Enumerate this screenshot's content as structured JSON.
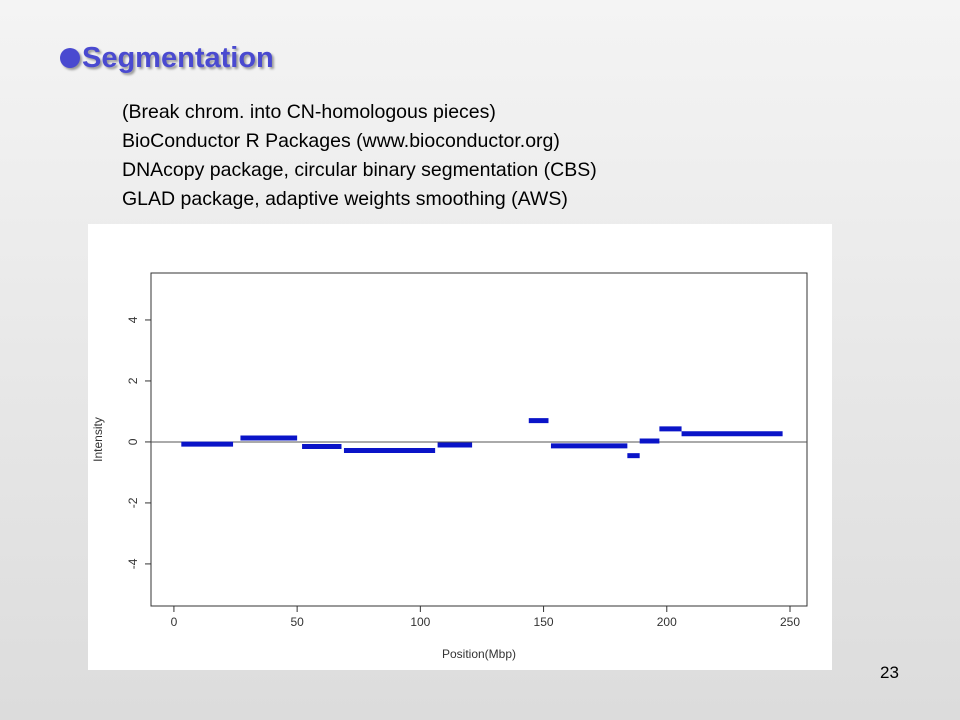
{
  "slide": {
    "title": "Segmentation",
    "lines": [
      "(Break chrom. into CN-homologous pieces)",
      "BioConductor R Packages  (www.bioconductor.org)",
      "DNAcopy package, circular binary segmentation (CBS)",
      "GLAD package, adaptive weights smoothing (AWS)"
    ],
    "page_number": "23"
  },
  "chart_data": {
    "type": "segment",
    "x_label": "Position(Mbp)",
    "y_label": "Intensity",
    "color": "#0a14c8",
    "segments": [
      {
        "start": 3,
        "end": 24,
        "value": -0.07
      },
      {
        "start": 27,
        "end": 50,
        "value": 0.13
      },
      {
        "start": 52,
        "end": 68,
        "value": -0.15
      },
      {
        "start": 69,
        "end": 106,
        "value": -0.28
      },
      {
        "start": 107,
        "end": 121,
        "value": -0.1
      },
      {
        "start": 144,
        "end": 152,
        "value": 0.7
      },
      {
        "start": 153,
        "end": 184,
        "value": -0.13
      },
      {
        "start": 184,
        "end": 189,
        "value": -0.45
      },
      {
        "start": 189,
        "end": 197,
        "value": 0.03
      },
      {
        "start": 197,
        "end": 206,
        "value": 0.43
      },
      {
        "start": 206,
        "end": 247,
        "value": 0.27
      }
    ],
    "xlim": [
      -9.3,
      256.9
    ],
    "xticks": [
      0,
      50,
      100,
      150,
      200,
      250
    ],
    "ylim": [
      -5.38,
      5.54
    ],
    "yticks": [
      -4,
      -2,
      0,
      2,
      4
    ]
  }
}
